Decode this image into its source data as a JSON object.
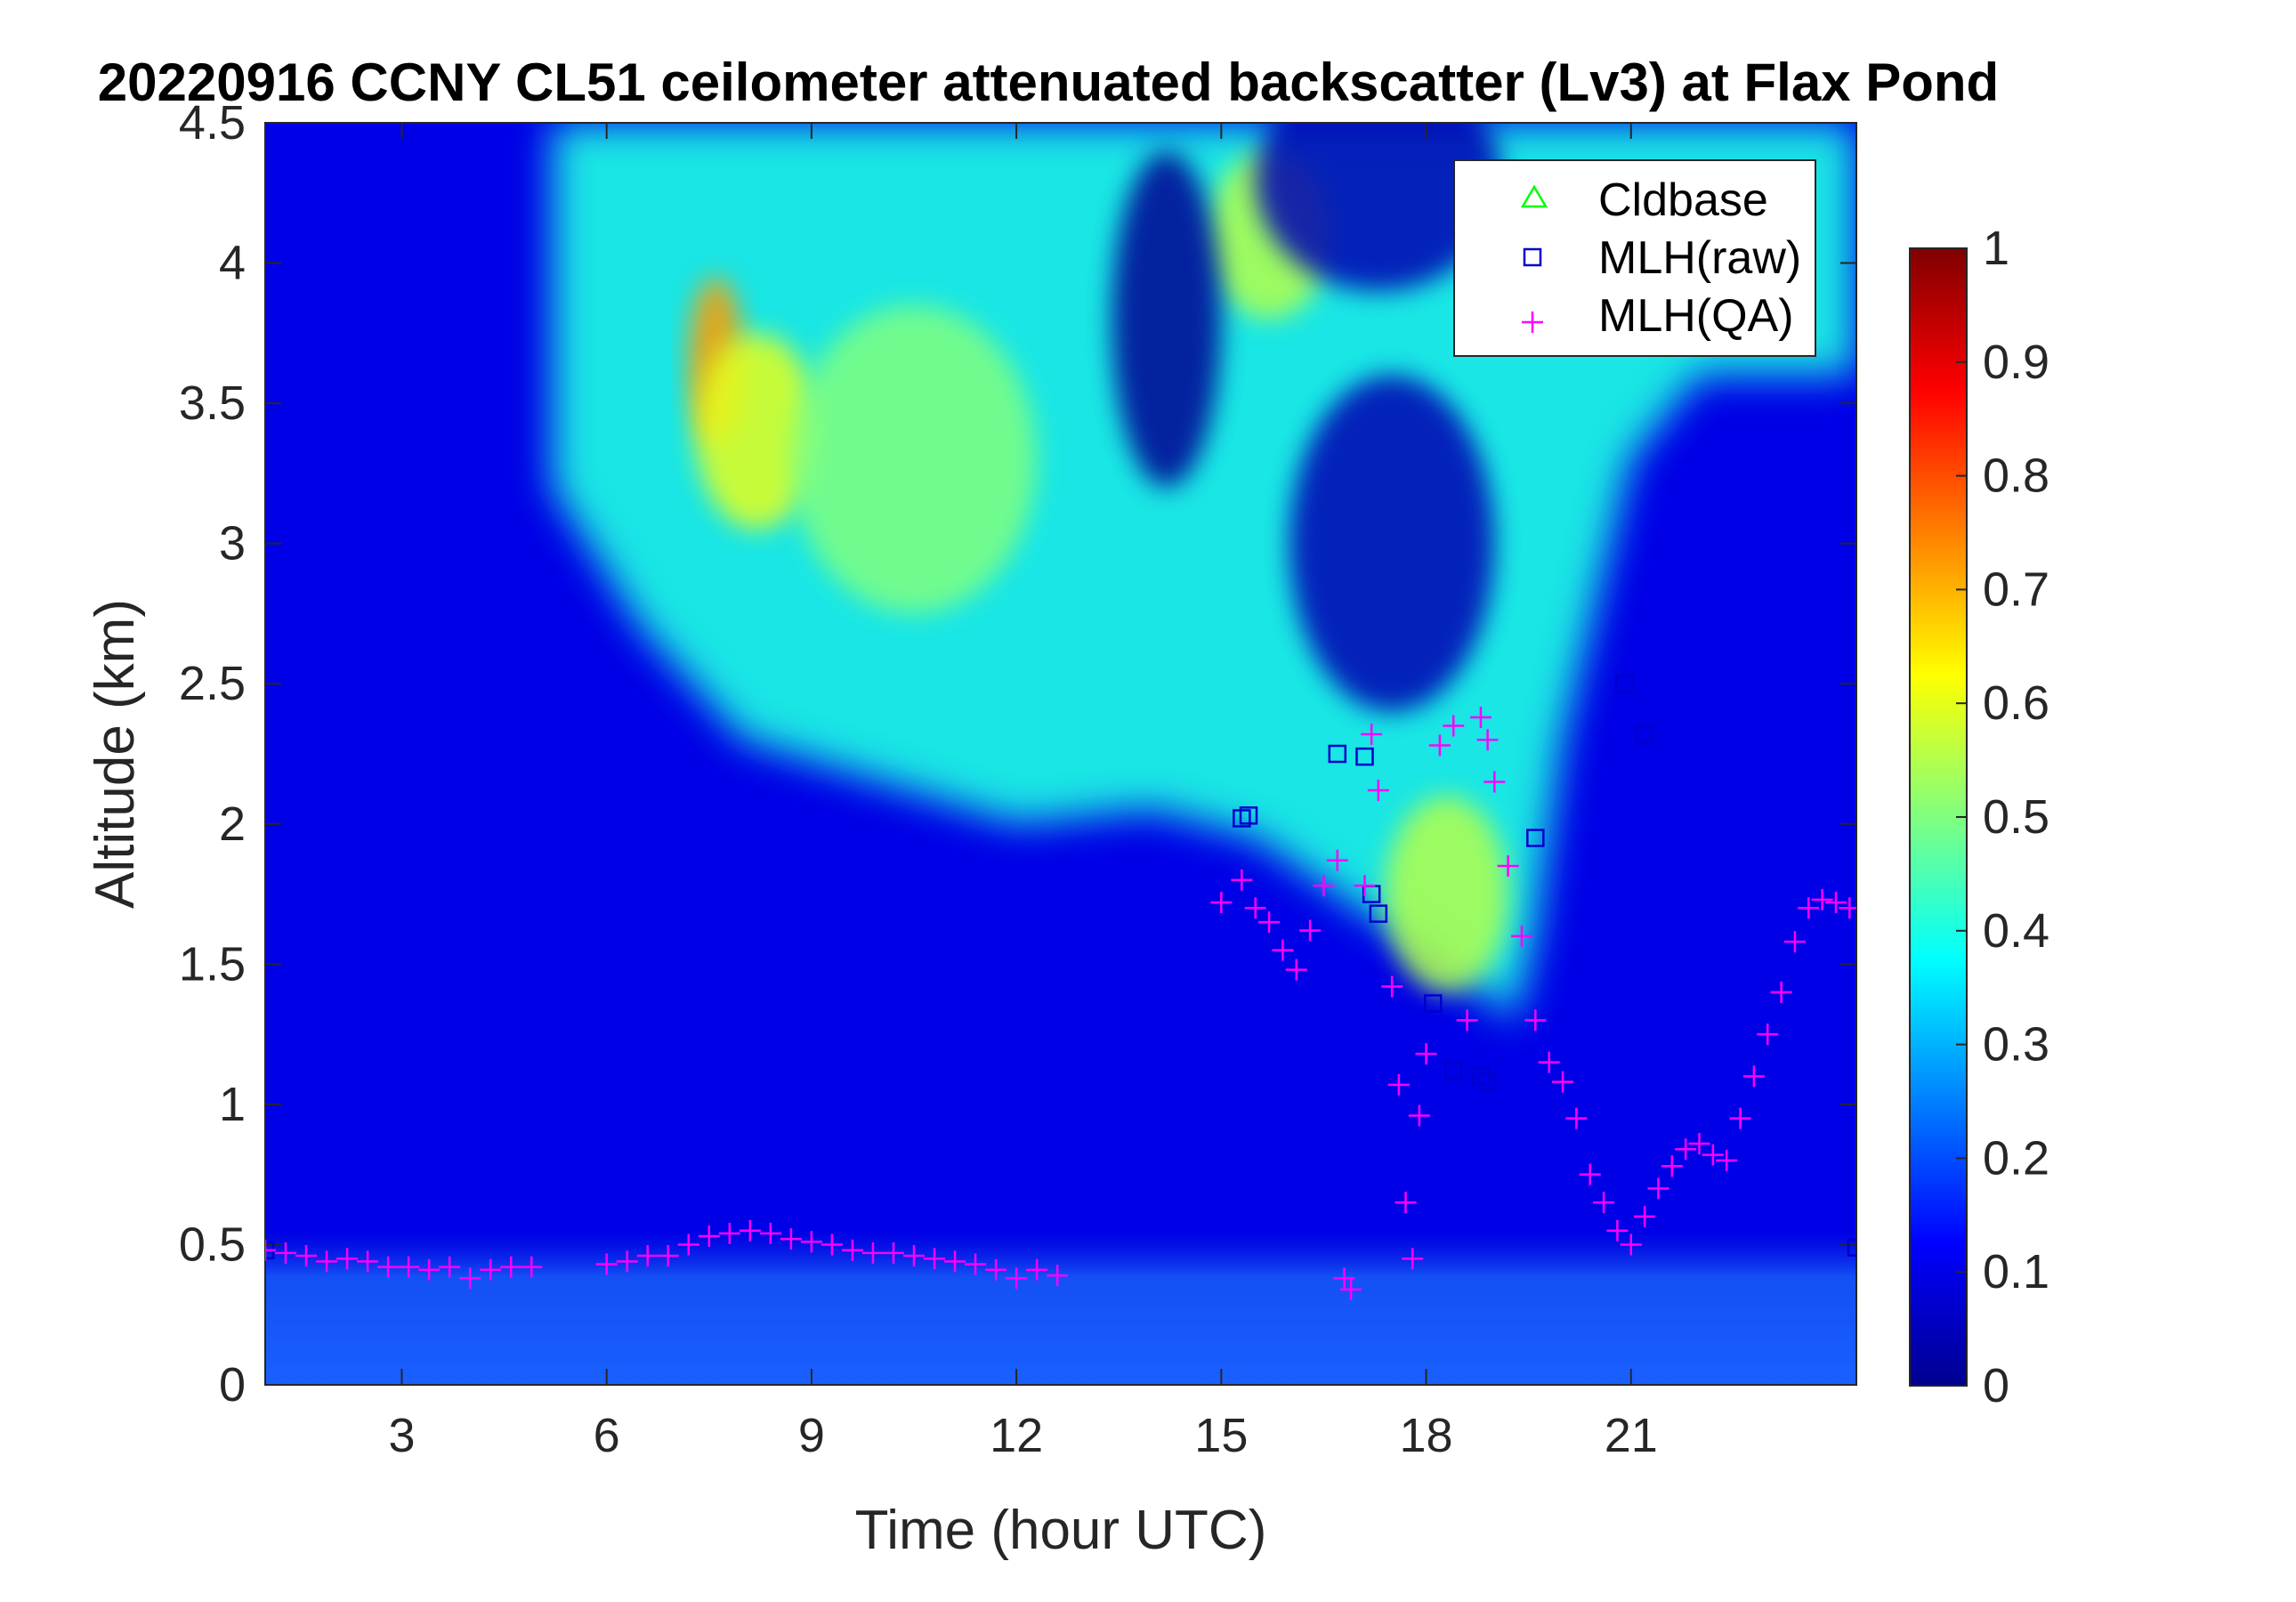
{
  "chart_data": {
    "type": "heatmap",
    "title": "20220916 CCNY CL51 ceilometer attenuated backscatter (Lv3) at Flax Pond",
    "xlabel": "Time (hour UTC)",
    "ylabel": "Altitude (km)",
    "xlim": [
      1,
      24.3
    ],
    "ylim": [
      0,
      4.5
    ],
    "xticks": [
      3,
      6,
      9,
      12,
      15,
      18,
      21
    ],
    "yticks": [
      0,
      0.5,
      1,
      1.5,
      2,
      2.5,
      3,
      3.5,
      4,
      4.5
    ],
    "xtick_labels": [
      "3",
      "6",
      "9",
      "12",
      "15",
      "18",
      "21"
    ],
    "ytick_labels": [
      "0",
      "0.5",
      "1",
      "1.5",
      "2",
      "2.5",
      "3",
      "3.5",
      "4",
      "4.5"
    ],
    "colorbar": {
      "colormap": "jet",
      "range": [
        0,
        1
      ],
      "ticks": [
        0,
        0.1,
        0.2,
        0.3,
        0.4,
        0.5,
        0.6,
        0.7,
        0.8,
        0.9,
        1
      ],
      "tick_labels": [
        "0",
        "0.1",
        "0.2",
        "0.3",
        "0.4",
        "0.5",
        "0.6",
        "0.7",
        "0.8",
        "0.9",
        "1"
      ]
    },
    "heatmap_description_values": {
      "background": 0.1,
      "surface_layer_top_km": 0.55,
      "surface_layer_value": 0.2,
      "aerosol_plume": {
        "top_edge": [
          [
            5.2,
            4.5
          ],
          [
            24.3,
            4.5
          ]
        ],
        "bottom_edge": [
          [
            5.2,
            3.2
          ],
          [
            6.5,
            2.7
          ],
          [
            8,
            2.3
          ],
          [
            10,
            2.15
          ],
          [
            12,
            2.0
          ],
          [
            14,
            2.05
          ],
          [
            15.5,
            1.95
          ],
          [
            17,
            1.7
          ],
          [
            18,
            1.55
          ],
          [
            19.3,
            1.3
          ],
          [
            19.6,
            1.6
          ],
          [
            20,
            2.3
          ],
          [
            21,
            3.3
          ],
          [
            22,
            3.6
          ],
          [
            24.3,
            3.6
          ]
        ],
        "value": 0.4
      },
      "hotspots": [
        {
          "x": 7.6,
          "y": 3.65,
          "rx": 0.4,
          "ry": 0.3,
          "value": 0.72
        },
        {
          "x": 8.2,
          "y": 3.4,
          "rx": 0.9,
          "ry": 0.35,
          "value": 0.6
        },
        {
          "x": 10.5,
          "y": 3.3,
          "rx": 1.8,
          "ry": 0.55,
          "value": 0.5
        },
        {
          "x": 18.3,
          "y": 1.75,
          "rx": 0.9,
          "ry": 0.35,
          "value": 0.55
        },
        {
          "x": 15.7,
          "y": 4.1,
          "rx": 0.9,
          "ry": 0.3,
          "value": 0.55
        }
      ],
      "dark_gaps": [
        {
          "x": 14.2,
          "y": 3.8,
          "rx": 0.8,
          "ry": 0.6,
          "value": 0.02
        },
        {
          "x": 17.5,
          "y": 3.0,
          "rx": 1.5,
          "ry": 0.6,
          "value": 0.05
        },
        {
          "x": 17.3,
          "y": 4.3,
          "rx": 1.8,
          "ry": 0.4,
          "value": 0.05
        }
      ]
    },
    "series": [
      {
        "name": "Cldbase",
        "marker": "triangle",
        "color": "#00ff00",
        "x": [],
        "y": []
      },
      {
        "name": "MLH(raw)",
        "marker": "square",
        "color": "#0000cc",
        "x": [
          1,
          15.3,
          15.4,
          16.7,
          17.1,
          17.2,
          17.3,
          18.1,
          18.4,
          18.8,
          18.9,
          19.6,
          20.9,
          21.2,
          24.3
        ],
        "y": [
          0.48,
          2.02,
          2.03,
          2.25,
          2.24,
          1.75,
          1.68,
          1.36,
          1.12,
          1.1,
          1.08,
          1.95,
          2.5,
          2.32,
          0.49
        ]
      },
      {
        "name": "MLH(QA)",
        "marker": "plus",
        "color": "#ff00ff",
        "x": [
          1.0,
          1.3,
          1.6,
          1.9,
          2.2,
          2.5,
          2.8,
          3.1,
          3.4,
          3.7,
          4.0,
          4.3,
          4.6,
          4.9,
          6.0,
          6.3,
          6.6,
          6.9,
          7.2,
          7.5,
          7.8,
          8.1,
          8.4,
          8.7,
          9.0,
          9.3,
          9.6,
          9.9,
          10.2,
          10.5,
          10.8,
          11.1,
          11.4,
          11.7,
          12.0,
          12.3,
          12.6,
          15.0,
          15.3,
          15.5,
          15.7,
          15.9,
          16.1,
          16.3,
          16.5,
          16.7,
          16.8,
          16.9,
          17.1,
          17.2,
          17.3,
          17.5,
          17.6,
          17.7,
          17.8,
          17.9,
          18.0,
          18.2,
          18.4,
          18.6,
          18.8,
          18.9,
          19.0,
          19.2,
          19.4,
          19.6,
          19.8,
          20.0,
          20.2,
          20.4,
          20.6,
          20.8,
          21.0,
          21.2,
          21.4,
          21.6,
          21.8,
          22.0,
          22.2,
          22.4,
          22.6,
          22.8,
          23.0,
          23.2,
          23.4,
          23.6,
          23.8,
          24.0,
          24.2
        ],
        "y": [
          0.48,
          0.47,
          0.46,
          0.44,
          0.45,
          0.44,
          0.42,
          0.42,
          0.41,
          0.42,
          0.38,
          0.41,
          0.42,
          0.42,
          0.43,
          0.44,
          0.46,
          0.46,
          0.5,
          0.53,
          0.54,
          0.55,
          0.54,
          0.52,
          0.51,
          0.5,
          0.48,
          0.47,
          0.47,
          0.46,
          0.45,
          0.44,
          0.43,
          0.41,
          0.38,
          0.41,
          0.39,
          1.72,
          1.8,
          1.7,
          1.65,
          1.55,
          1.48,
          1.62,
          1.78,
          1.87,
          0.38,
          0.34,
          1.78,
          2.32,
          2.12,
          1.42,
          1.07,
          0.65,
          0.45,
          0.96,
          1.18,
          2.28,
          2.35,
          1.3,
          2.38,
          2.3,
          2.15,
          1.85,
          1.6,
          1.3,
          1.15,
          1.08,
          0.95,
          0.75,
          0.65,
          0.55,
          0.5,
          0.6,
          0.7,
          0.78,
          0.84,
          0.86,
          0.82,
          0.8,
          0.95,
          1.1,
          1.25,
          1.4,
          1.58,
          1.7,
          1.73,
          1.72,
          1.7
        ]
      }
    ],
    "legend_position": "top-right"
  }
}
